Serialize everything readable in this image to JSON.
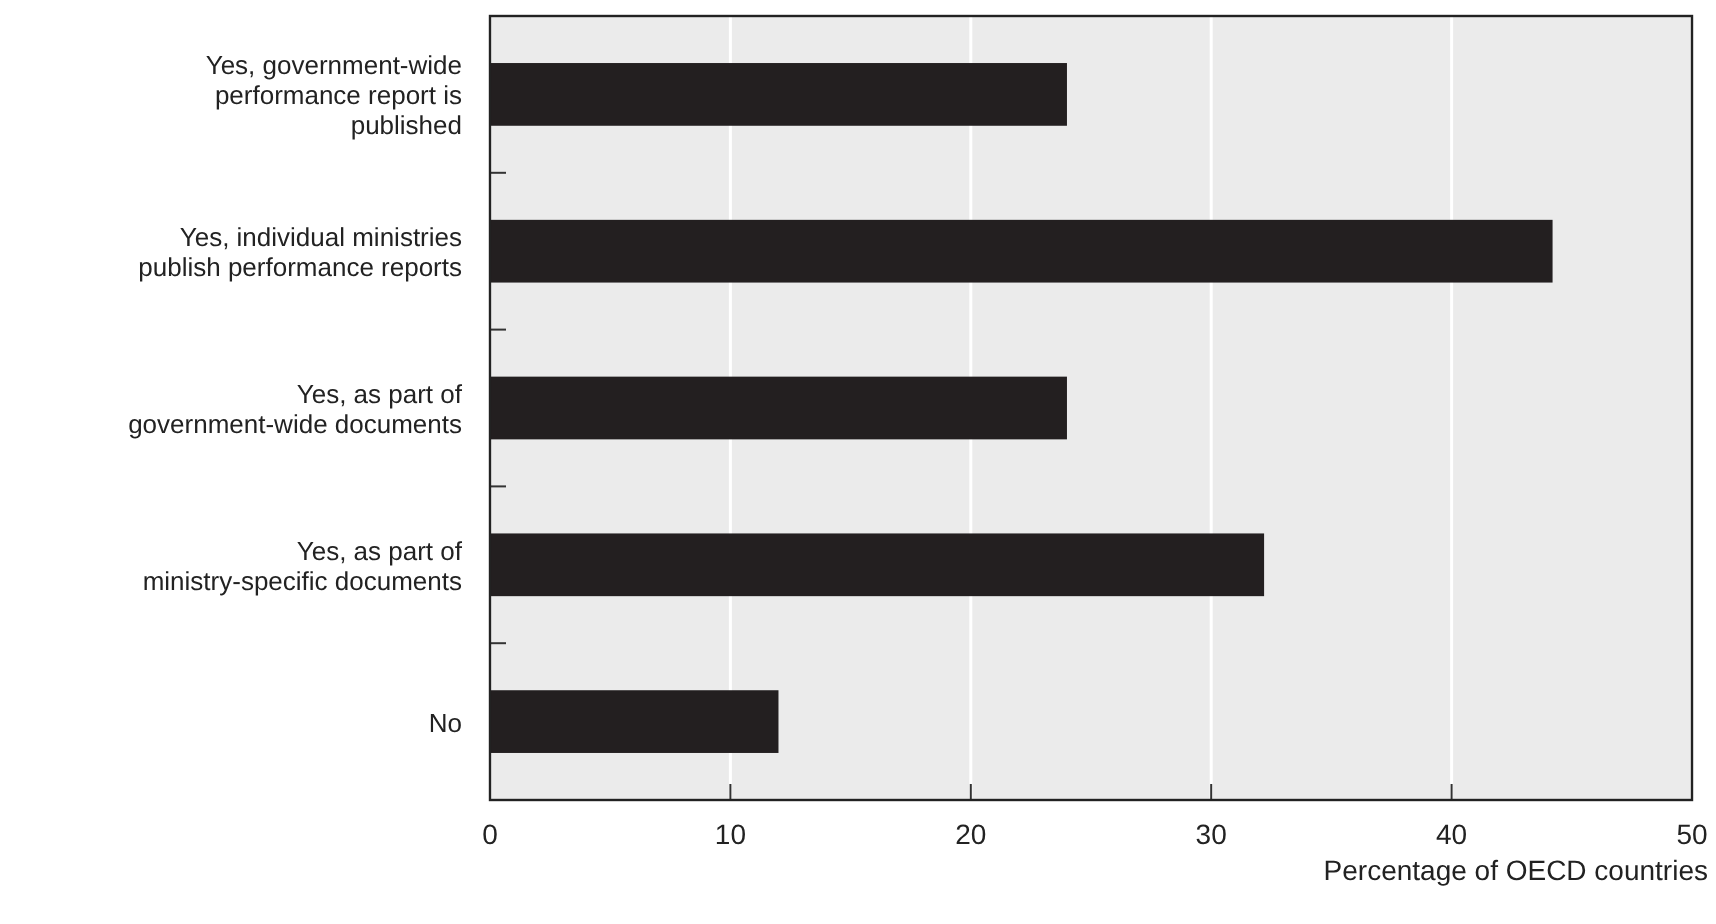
{
  "chart_data": {
    "type": "bar",
    "orientation": "horizontal",
    "xlabel": "Percentage of OECD countries",
    "categories": [
      "Yes, government-wide performance report is published",
      "Yes, individual ministries publish performance reports",
      "Yes, as part of government-wide documents",
      "Yes, as part of ministry-specific documents",
      "No"
    ],
    "values": [
      24,
      44.2,
      24,
      32.2,
      12
    ],
    "color": "#231f20",
    "xlim": [
      0,
      50
    ],
    "xticks": [
      0,
      10,
      20,
      30,
      40,
      50
    ],
    "grid": "x"
  }
}
